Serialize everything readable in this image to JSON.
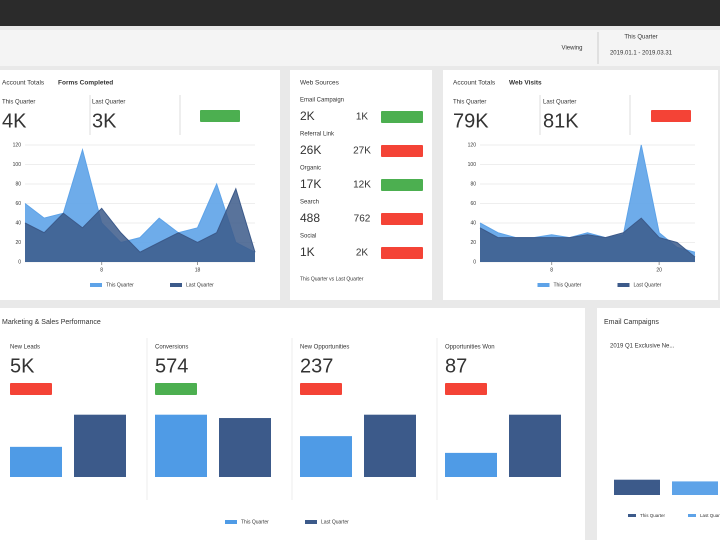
{
  "toolbar": {
    "filter": "Viewing",
    "period": "This Quarter",
    "range": "2019.01.1 - 2019.03.31"
  },
  "forms": {
    "title_prefix": "Account Totals",
    "title": "Forms Completed",
    "kpis": [
      {
        "label": "This Quarter",
        "value": "4K"
      },
      {
        "label": "Last Quarter",
        "value": "3K"
      }
    ],
    "badge": "#4caf50",
    "chart": {
      "type": "area",
      "x": [
        0,
        2,
        4,
        6,
        8,
        10,
        12,
        14,
        16,
        18,
        20,
        22,
        24
      ],
      "xlim": [
        0,
        24
      ],
      "xticks": [
        8,
        18
      ],
      "ylim": [
        0,
        120
      ],
      "yticks": [
        0,
        20,
        40,
        60,
        80,
        100,
        120
      ],
      "series": [
        {
          "name": "This Quarter",
          "color": "#5ea3e8",
          "values": [
            60,
            45,
            50,
            115,
            40,
            20,
            25,
            45,
            30,
            35,
            80,
            20,
            10
          ]
        },
        {
          "name": "Last Quarter",
          "color": "#3c5a8a",
          "values": [
            40,
            30,
            50,
            35,
            55,
            30,
            10,
            20,
            30,
            20,
            30,
            75,
            10
          ]
        }
      ]
    }
  },
  "sources": {
    "title": "Web Sources",
    "rows": [
      {
        "label": "Email Campaign",
        "this": "2K",
        "last": "1K",
        "badge": "#4caf50"
      },
      {
        "label": "Referral Link",
        "this": "26K",
        "last": "27K",
        "badge": "#f44336"
      },
      {
        "label": "Organic",
        "this": "17K",
        "last": "12K",
        "badge": "#4caf50"
      },
      {
        "label": "Search",
        "this": "488",
        "last": "762",
        "badge": "#f44336"
      },
      {
        "label": "Social",
        "this": "1K",
        "last": "2K",
        "badge": "#f44336"
      }
    ],
    "note": "This Quarter vs Last Quarter"
  },
  "visits": {
    "title_prefix": "Account Totals",
    "title": "Web Visits",
    "kpis": [
      {
        "label": "This Quarter",
        "value": "79K"
      },
      {
        "label": "Last Quarter",
        "value": "81K"
      }
    ],
    "badge": "#f44336",
    "chart": {
      "type": "area",
      "x": [
        0,
        2,
        4,
        6,
        8,
        10,
        12,
        14,
        16,
        18,
        20,
        22,
        24
      ],
      "xlim": [
        0,
        24
      ],
      "xticks": [
        8,
        20
      ],
      "ylim": [
        0,
        120
      ],
      "yticks": [
        0,
        20,
        40,
        60,
        80,
        100,
        120
      ],
      "series": [
        {
          "name": "This Quarter",
          "color": "#5ea3e8",
          "values": [
            40,
            30,
            25,
            25,
            28,
            25,
            30,
            25,
            28,
            120,
            30,
            15,
            10
          ]
        },
        {
          "name": "Last Quarter",
          "color": "#3c5a8a",
          "values": [
            35,
            25,
            25,
            25,
            25,
            25,
            28,
            25,
            30,
            45,
            25,
            20,
            5
          ]
        }
      ]
    }
  },
  "performance": {
    "title": "Marketing & Sales Performance",
    "ylim": [
      0,
      100
    ],
    "series": [
      {
        "name": "This Quarter",
        "color": "#4f9be6"
      },
      {
        "name": "Last Quarter",
        "color": "#3c5a8a"
      }
    ],
    "panels": [
      {
        "label": "New Leads",
        "value": "5K",
        "badge": "#f44336",
        "bars": [
          45,
          93
        ]
      },
      {
        "label": "Conversions",
        "value": "574",
        "badge": "#4caf50",
        "bars": [
          93,
          88
        ]
      },
      {
        "label": "New Opportunities",
        "value": "237",
        "badge": "#f44336",
        "bars": [
          61,
          93
        ]
      },
      {
        "label": "Opportunities Won",
        "value": "87",
        "badge": "#f44336",
        "bars": [
          36,
          93
        ]
      }
    ]
  },
  "email": {
    "title": "Email Campaigns",
    "campaign": "2019 Q1 Exclusive Ne...",
    "ylim": [
      0,
      100
    ],
    "series": [
      {
        "name": "This Quarter",
        "color": "#3c5a8a"
      },
      {
        "name": "Last Quarter",
        "color": "#5ea3e8"
      }
    ],
    "bars": [
      18,
      16
    ]
  }
}
